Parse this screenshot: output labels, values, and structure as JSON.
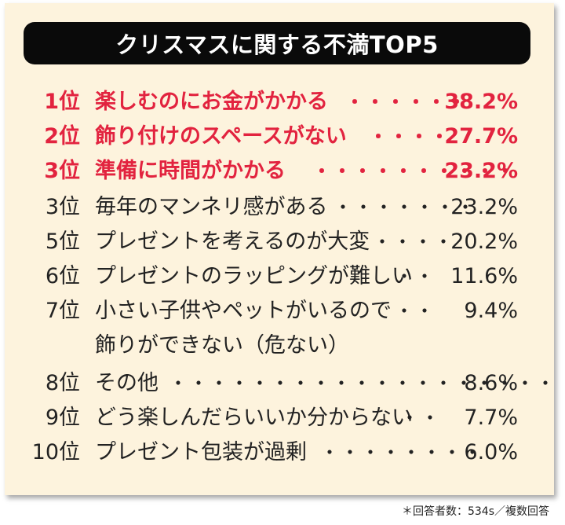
{
  "title": "クリスマスに関する不満TOP5",
  "rows": [
    {
      "rank": "1位",
      "label": "楽しむのにお金がかかる",
      "dots": "・・・・・・",
      "pct": "38.2%",
      "highlight": true
    },
    {
      "rank": "2位",
      "label": "飾り付けのスペースがない",
      "dots": "・・・・",
      "pct": "27.7%",
      "highlight": true
    },
    {
      "rank": "3位",
      "label": "準備に時間がかかる",
      "dots": "・・・・・・・・・・",
      "pct": "23.2%",
      "highlight": true
    },
    {
      "rank": "3位",
      "label": "毎年のマンネリ感がある",
      "dots": "・・・・・・・",
      "pct": "23.2%",
      "highlight": false
    },
    {
      "rank": "5位",
      "label": "プレゼントを考えるのが大変",
      "dots": "・・・・",
      "pct": "20.2%",
      "highlight": false
    },
    {
      "rank": "6位",
      "label": "プレゼントのラッピングが難しい",
      "dots": "・・",
      "pct": "11.6%",
      "highlight": false
    },
    {
      "rank": "7位",
      "label": "小さい子供やペットがいるので",
      "label2": "飾りができない（危ない）",
      "dots": "・・",
      "pct": "9.4%",
      "highlight": false
    },
    {
      "rank": "8位",
      "label": "その他",
      "dots": "・・・・・・・・・・・・・・・・・・・",
      "pct": "8.6%",
      "highlight": false
    },
    {
      "rank": "9位",
      "label": "どう楽しんだらいいか分からない",
      "dots": "・・",
      "pct": "7.7%",
      "highlight": false
    },
    {
      "rank": "10位",
      "label": "プレゼント包装が過剰",
      "dots": "・・・・・・・・",
      "pct": "6.0%",
      "highlight": false
    }
  ],
  "footnote": "＊回答者数：534s／複数回答",
  "colors": {
    "accent": "#e2233f",
    "background": "#fdf3dd",
    "title_bar": "#0a0a0a"
  }
}
